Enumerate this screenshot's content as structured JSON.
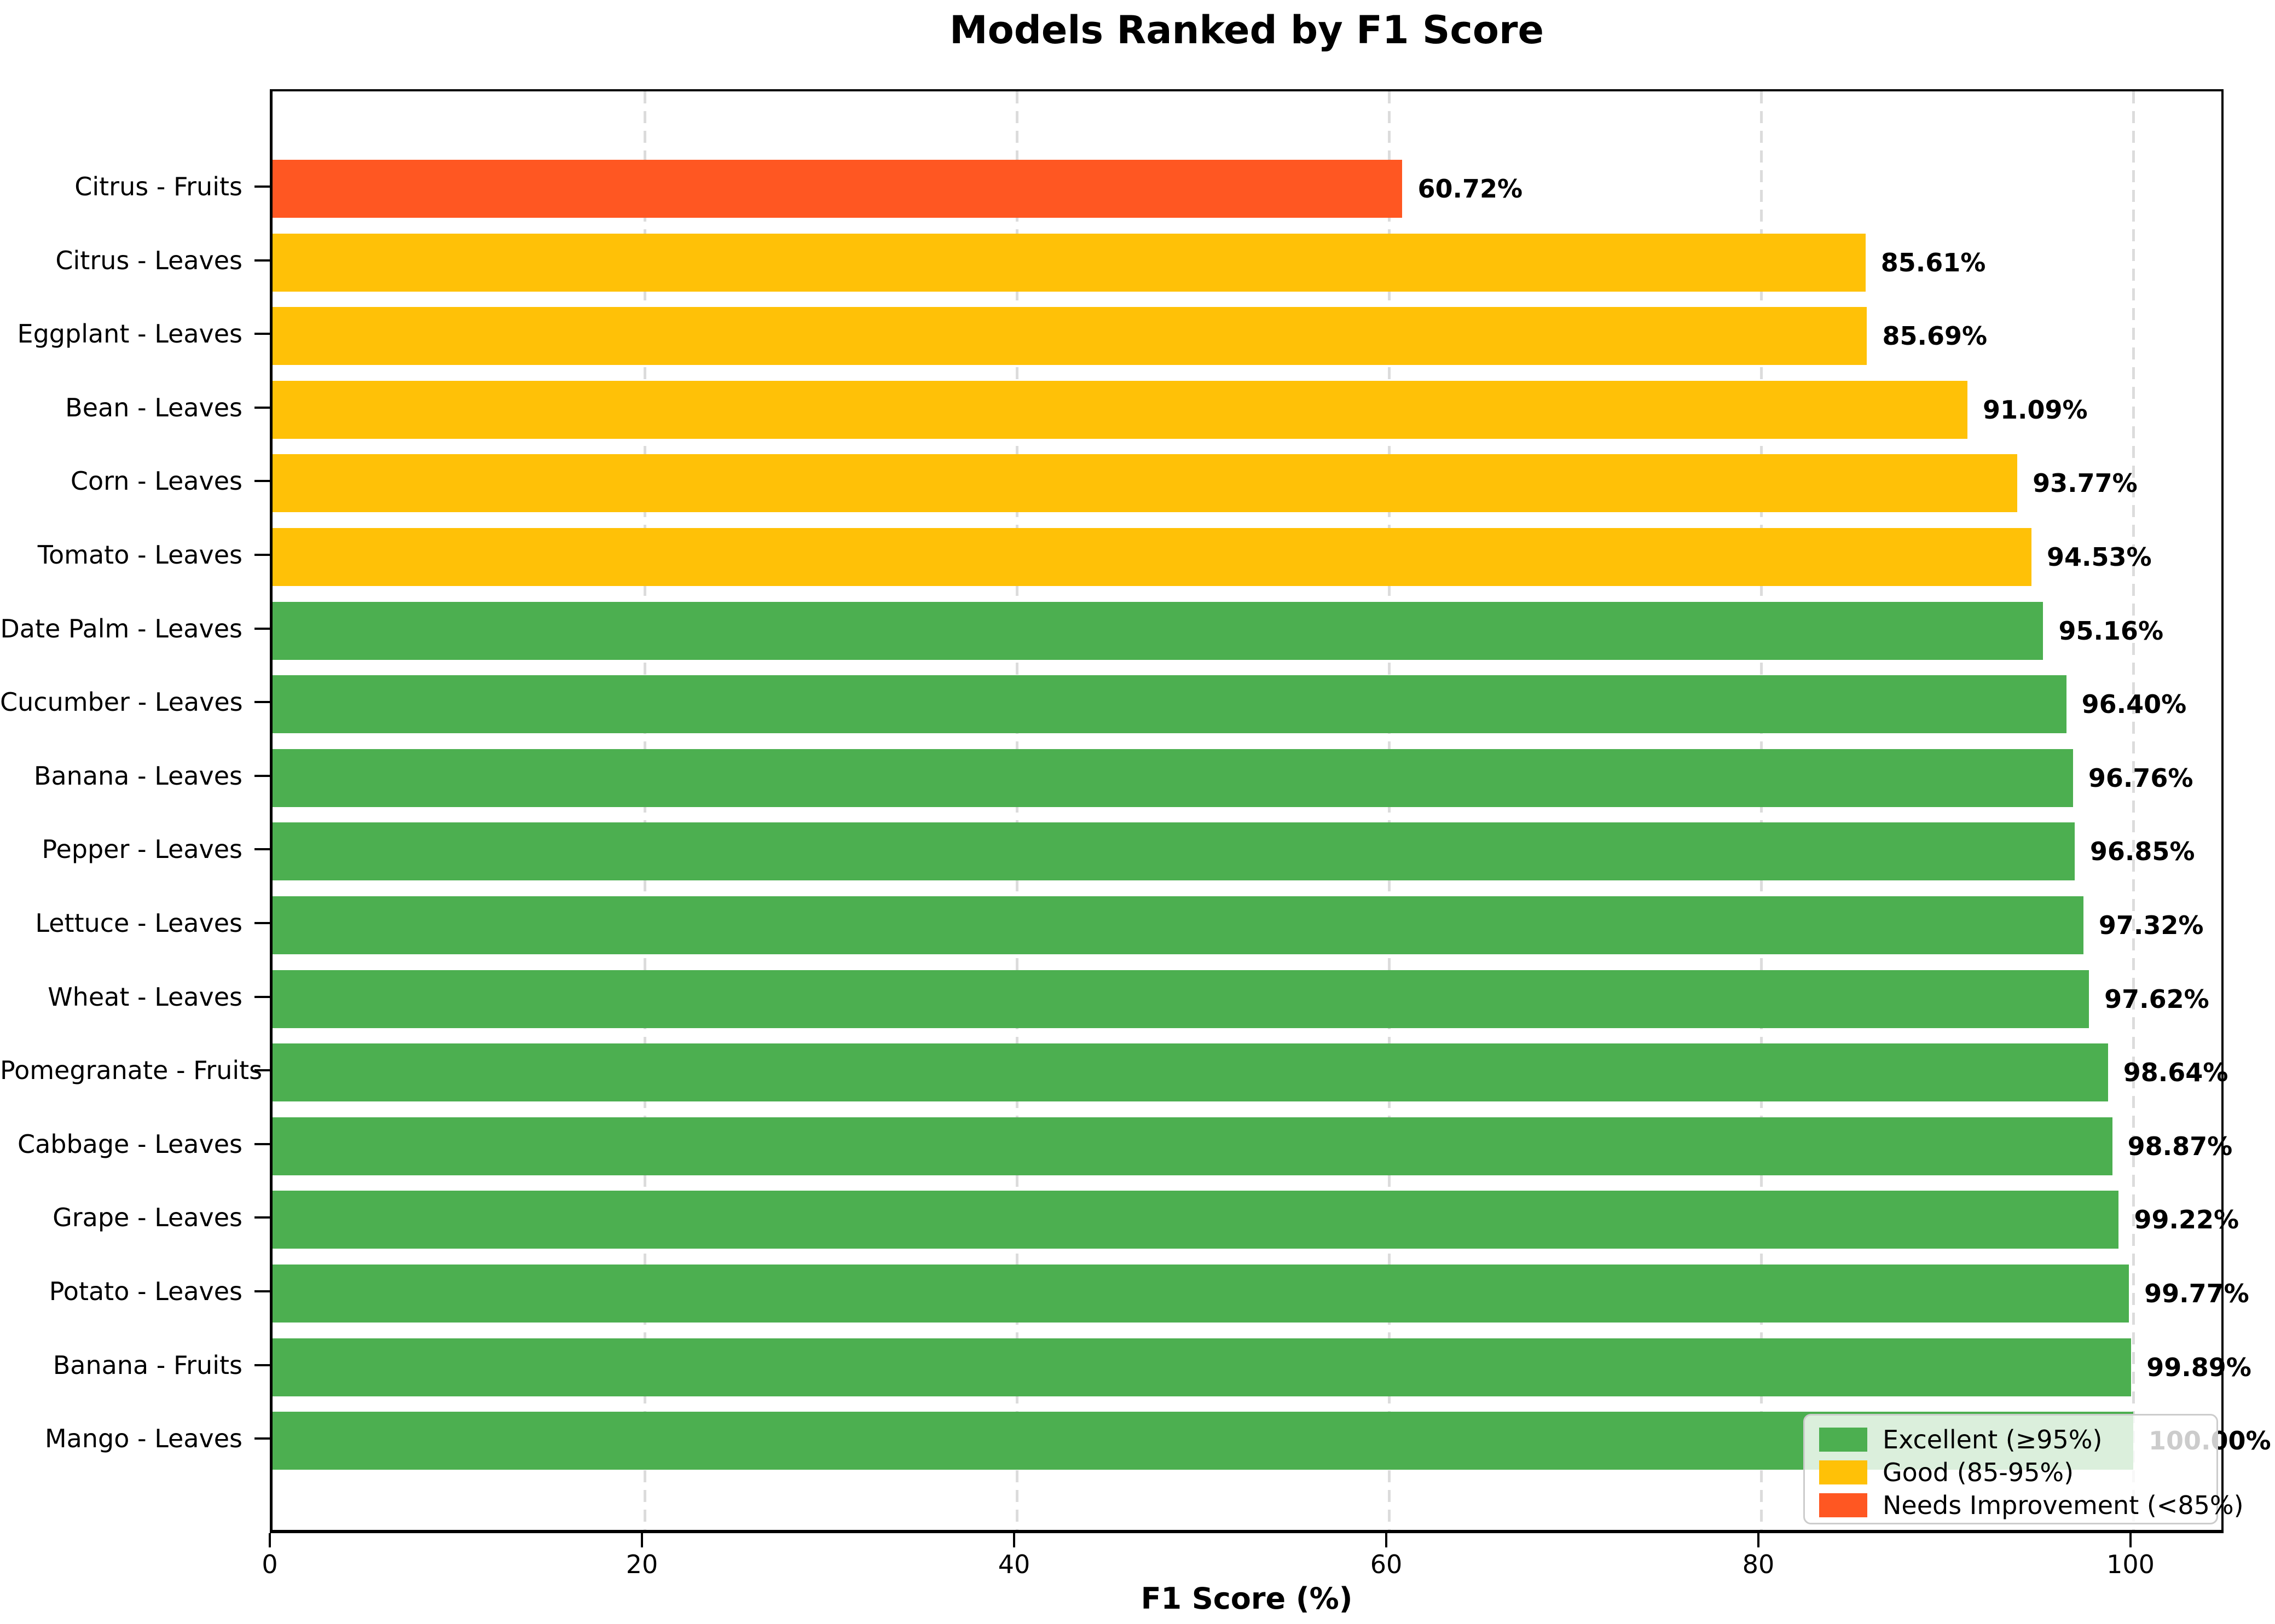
{
  "chart_data": {
    "type": "bar",
    "orientation": "horizontal",
    "title": "Models Ranked by F1 Score",
    "xlabel": "F1 Score (%)",
    "ylabel": "",
    "xlim": [
      0,
      105
    ],
    "xticks": [
      0,
      20,
      40,
      60,
      80,
      100
    ],
    "grid": "vertical dashed gridlines at x ticks",
    "gridline_color": "#dcdcdc",
    "categories": [
      "Citrus - Fruits",
      "Citrus - Leaves",
      "Eggplant - Leaves",
      "Bean - Leaves",
      "Corn - Leaves",
      "Tomato - Leaves",
      "Date Palm - Leaves",
      "Cucumber - Leaves",
      "Banana - Leaves",
      "Pepper - Leaves",
      "Lettuce - Leaves",
      "Wheat - Leaves",
      "Pomegranate - Fruits",
      "Cabbage - Leaves",
      "Grape - Leaves",
      "Potato - Leaves",
      "Banana - Fruits",
      "Mango - Leaves"
    ],
    "values": [
      60.72,
      85.61,
      85.69,
      91.09,
      93.77,
      94.53,
      95.16,
      96.4,
      96.76,
      96.85,
      97.32,
      97.62,
      98.64,
      98.87,
      99.22,
      99.77,
      99.89,
      100.0
    ],
    "value_labels": [
      "60.72%",
      "85.61%",
      "85.69%",
      "91.09%",
      "93.77%",
      "94.53%",
      "95.16%",
      "96.40%",
      "96.76%",
      "96.85%",
      "97.32%",
      "97.62%",
      "98.64%",
      "98.87%",
      "99.22%",
      "99.77%",
      "99.89%",
      "100.00%"
    ],
    "statuses": [
      "needs_improvement",
      "good",
      "good",
      "good",
      "good",
      "good",
      "excellent",
      "excellent",
      "excellent",
      "excellent",
      "excellent",
      "excellent",
      "excellent",
      "excellent",
      "excellent",
      "excellent",
      "excellent",
      "excellent"
    ],
    "colors": {
      "excellent": "#4CAF50",
      "good": "#FFC107",
      "needs_improvement": "#FF5722"
    },
    "legend": {
      "position": "lower right",
      "entries": [
        {
          "label": "Excellent (≥95%)",
          "status": "excellent",
          "color": "#4CAF50"
        },
        {
          "label": "Good (85-95%)",
          "status": "good",
          "color": "#FFC107"
        },
        {
          "label": "Needs Improvement (<85%)",
          "status": "needs_improvement",
          "color": "#FF5722"
        }
      ]
    }
  }
}
